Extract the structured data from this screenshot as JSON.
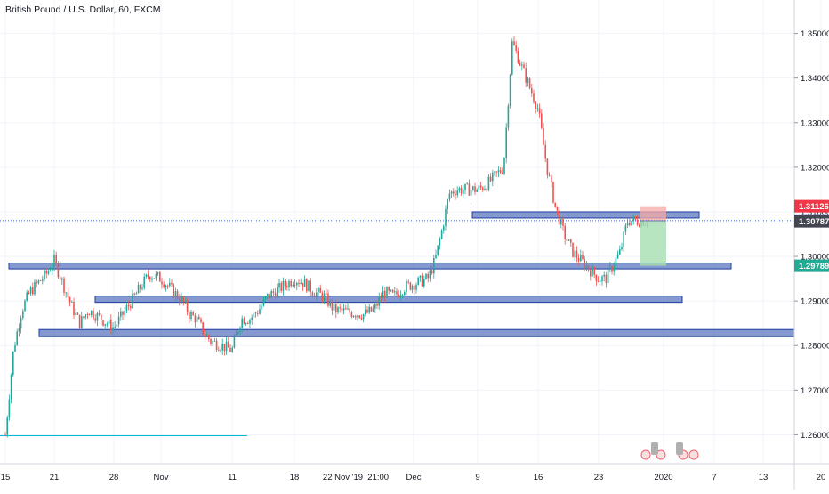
{
  "title": "British Pound / U.S. Dollar, 60, FXCM",
  "chart_data": {
    "type": "candlestick",
    "title": "British Pound / U.S. Dollar, 60, FXCM",
    "symbol": "GBPUSD",
    "ylim": [
      1.2535,
      1.3575
    ],
    "y_ticks": [
      "1.35000",
      "1.34000",
      "1.33000",
      "1.32000",
      "1.31000",
      "1.30000",
      "1.29000",
      "1.28000",
      "1.27000",
      "1.26000"
    ],
    "x_ticks": [
      "15",
      "21",
      "28",
      "Nov",
      "11",
      "18",
      "22 Nov '19  21:00",
      "Dec",
      "9",
      "16",
      "23",
      "2020",
      "7",
      "13",
      "20"
    ],
    "price_labels": [
      {
        "text": "1.31126",
        "value": 1.31126,
        "color": "#f23645"
      },
      {
        "text": "1.30802",
        "value": 1.30802,
        "color": "#2962ff"
      },
      {
        "text": "1.30787",
        "value": 1.30787,
        "color": "#434651"
      },
      {
        "text": "1.29789",
        "value": 1.29789,
        "color": "#22ab94"
      }
    ],
    "current_price": 1.30802,
    "support_resistance_zones": [
      {
        "high": 1.31,
        "low": 1.3086
      },
      {
        "high": 1.2985,
        "low": 1.2972
      },
      {
        "high": 1.2911,
        "low": 1.2897
      },
      {
        "high": 1.2836,
        "low": 1.282
      }
    ],
    "position_tool": {
      "entry": 1.308,
      "stop": 1.31126,
      "target": 1.29789
    },
    "cyan_line_price": 1.2598,
    "price_path": [
      [
        "Oct 15",
        1.26
      ],
      [
        "Oct 16",
        1.279
      ],
      [
        "Oct 17",
        1.288
      ],
      [
        "Oct 18",
        1.292
      ],
      [
        "Oct 20",
        1.296
      ],
      [
        "Oct 21",
        1.299
      ],
      [
        "Oct 22",
        1.294
      ],
      [
        "Oct 23",
        1.289
      ],
      [
        "Oct 24",
        1.285
      ],
      [
        "Oct 25",
        1.288
      ],
      [
        "Oct 28",
        1.284
      ],
      [
        "Oct 29",
        1.288
      ],
      [
        "Oct 30",
        1.292
      ],
      [
        "Oct 31",
        1.296
      ],
      [
        "Nov 1",
        1.295
      ],
      [
        "Nov 4",
        1.29
      ],
      [
        "Nov 5",
        1.287
      ],
      [
        "Nov 6",
        1.286
      ],
      [
        "Nov 7",
        1.283
      ],
      [
        "Nov 8",
        1.281
      ],
      [
        "Nov 11",
        1.279
      ],
      [
        "Nov 12",
        1.286
      ],
      [
        "Nov 13",
        1.286
      ],
      [
        "Nov 14",
        1.288
      ],
      [
        "Nov 15",
        1.291
      ],
      [
        "Nov 18",
        1.295
      ],
      [
        "Nov 19",
        1.294
      ],
      [
        "Nov 20",
        1.292
      ],
      [
        "Nov 21",
        1.291
      ],
      [
        "Nov 22",
        1.288
      ],
      [
        "Nov 25",
        1.287
      ],
      [
        "Nov 26",
        1.288
      ],
      [
        "Nov 27",
        1.292
      ],
      [
        "Nov 28",
        1.291
      ],
      [
        "Nov 29",
        1.293
      ],
      [
        "Dec 2",
        1.295
      ],
      [
        "Dec 3",
        1.299
      ],
      [
        "Dec 4",
        1.306
      ],
      [
        "Dec 5",
        1.314
      ],
      [
        "Dec 6",
        1.315
      ],
      [
        "Dec 9",
        1.315
      ],
      [
        "Dec 10",
        1.316
      ],
      [
        "Dec 11",
        1.318
      ],
      [
        "Dec 12",
        1.32
      ],
      [
        "Dec 13",
        1.348
      ],
      [
        "Dec 16",
        1.333
      ],
      [
        "Dec 17",
        1.32
      ],
      [
        "Dec 18",
        1.311
      ],
      [
        "Dec 19",
        1.305
      ],
      [
        "Dec 20",
        1.301
      ],
      [
        "Dec 23",
        1.295
      ],
      [
        "Dec 24",
        1.295
      ],
      [
        "Dec 26",
        1.301
      ],
      [
        "Dec 27",
        1.308
      ],
      [
        "Dec 30",
        1.308
      ]
    ],
    "grid": true,
    "legend": "none"
  }
}
